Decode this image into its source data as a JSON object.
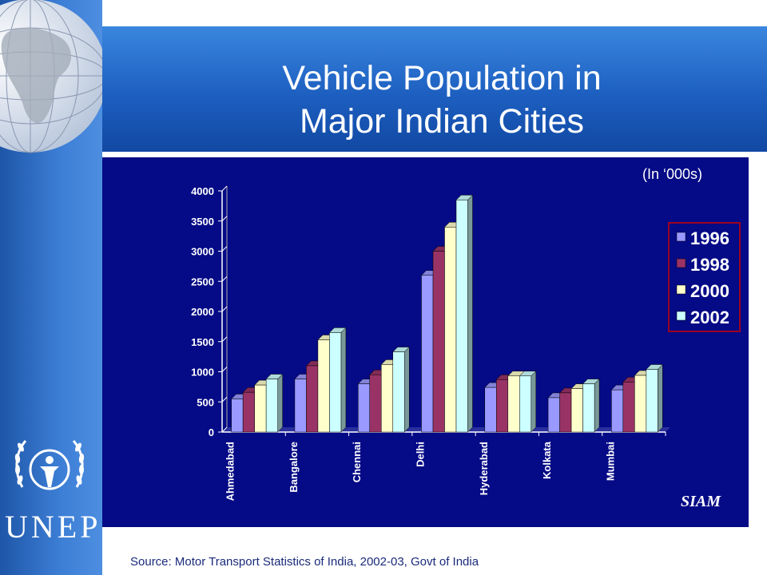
{
  "slide": {
    "title_line1": "Vehicle Population in",
    "title_line2": "Major Indian Cities",
    "unit_note": "(In ‘000s)",
    "credit": "SIAM",
    "source": "Source: Motor Transport Statistics of India, 2002-03, Govt of India",
    "logo_text": "UNEP"
  },
  "colors": {
    "series": [
      "#9999ff",
      "#993366",
      "#ffffcc",
      "#ccffff"
    ],
    "background": "#050a86",
    "legend_border": "#cc0000"
  },
  "chart_data": {
    "type": "bar",
    "categories": [
      "Ahmedabad",
      "Bangalore",
      "Chennai",
      "Delhi",
      "Hyderabad",
      "Kolkata",
      "Mumbai"
    ],
    "series": [
      {
        "name": "1996",
        "values": [
          550,
          880,
          800,
          2600,
          740,
          570,
          700
        ]
      },
      {
        "name": "1998",
        "values": [
          660,
          1100,
          950,
          3000,
          870,
          650,
          830
        ]
      },
      {
        "name": "2000",
        "values": [
          780,
          1530,
          1120,
          3400,
          930,
          720,
          940
        ]
      },
      {
        "name": "2002",
        "values": [
          880,
          1650,
          1330,
          3850,
          930,
          800,
          1040
        ]
      }
    ],
    "ylim": [
      0,
      4000
    ],
    "yticks": [
      0,
      500,
      1000,
      1500,
      2000,
      2500,
      3000,
      3500,
      4000
    ],
    "legend_position": "right",
    "grid": false,
    "style": "3d-clustered"
  }
}
